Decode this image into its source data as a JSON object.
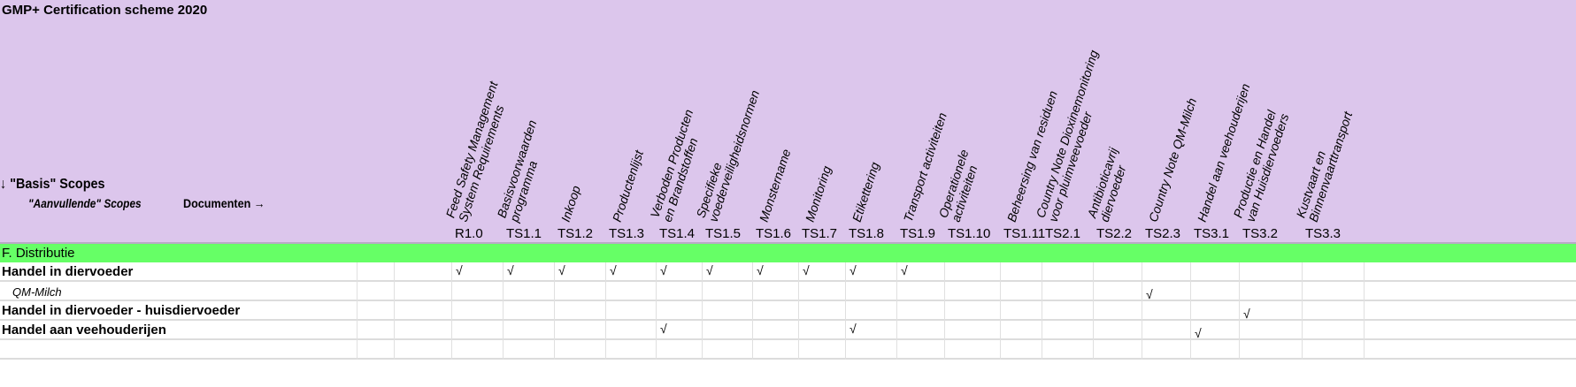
{
  "title": "GMP+ Certification scheme 2020",
  "basis": "↓ \"Basis\" Scopes",
  "aanvullende": "\"Aanvullende\" Scopes",
  "documenten": "Documenten →",
  "columns": [
    {
      "code": "R1.0",
      "name": "Feed Safety Management System Requirements"
    },
    {
      "code": "TS1.1",
      "name": "Basisvoorwaarden programma"
    },
    {
      "code": "TS1.2",
      "name": "Inkoop"
    },
    {
      "code": "TS1.3",
      "name": "Productenlijst"
    },
    {
      "code": "TS1.4",
      "name": "Verboden Producten en Brandstoffen"
    },
    {
      "code": "TS1.5",
      "name": "Specifieke voederveiligheidsnormen"
    },
    {
      "code": "TS1.6",
      "name": "Monstername"
    },
    {
      "code": "TS1.7",
      "name": "Monitoring"
    },
    {
      "code": "TS1.8",
      "name": "Etikettering"
    },
    {
      "code": "TS1.9",
      "name": "Transport activiteiten"
    },
    {
      "code": "TS1.10",
      "name": "Operationele activiteiten"
    },
    {
      "code": "TS1.11",
      "name": "Beheersing van residuen"
    },
    {
      "code": "TS2.1",
      "name": "Country Note Dioxinemonitoring voor pluimveevoeder"
    },
    {
      "code": "TS2.2",
      "name": "Antibioticavrij diervoeder"
    },
    {
      "code": "TS2.3",
      "name": "Country Note QM-Milch"
    },
    {
      "code": "TS3.1",
      "name": "Handel aan veehouderijen"
    },
    {
      "code": "TS3.2",
      "name": "Productie en Handel van Huisdiervoeders"
    },
    {
      "code": "TS3.3",
      "name": "Kustvaart en Binnenvaarttransport"
    }
  ],
  "section": "F. Distributie",
  "check_mark": "√",
  "rows": [
    {
      "label": "Handel in diervoeder",
      "italic": false,
      "checks": [
        "R1.0",
        "TS1.1",
        "TS1.2",
        "TS1.3",
        "TS1.4",
        "TS1.5",
        "TS1.6",
        "TS1.7",
        "TS1.8",
        "TS1.9"
      ]
    },
    {
      "label": "QM-Milch",
      "italic": true,
      "checks": [
        "TS2.3"
      ]
    },
    {
      "label": "Handel in diervoeder - huisdiervoeder",
      "italic": false,
      "checks": [
        "TS3.2"
      ]
    },
    {
      "label": "Handel aan veehouderijen",
      "italic": false,
      "checks": [
        "TS1.4",
        "TS1.8",
        "TS3.1"
      ]
    }
  ]
}
